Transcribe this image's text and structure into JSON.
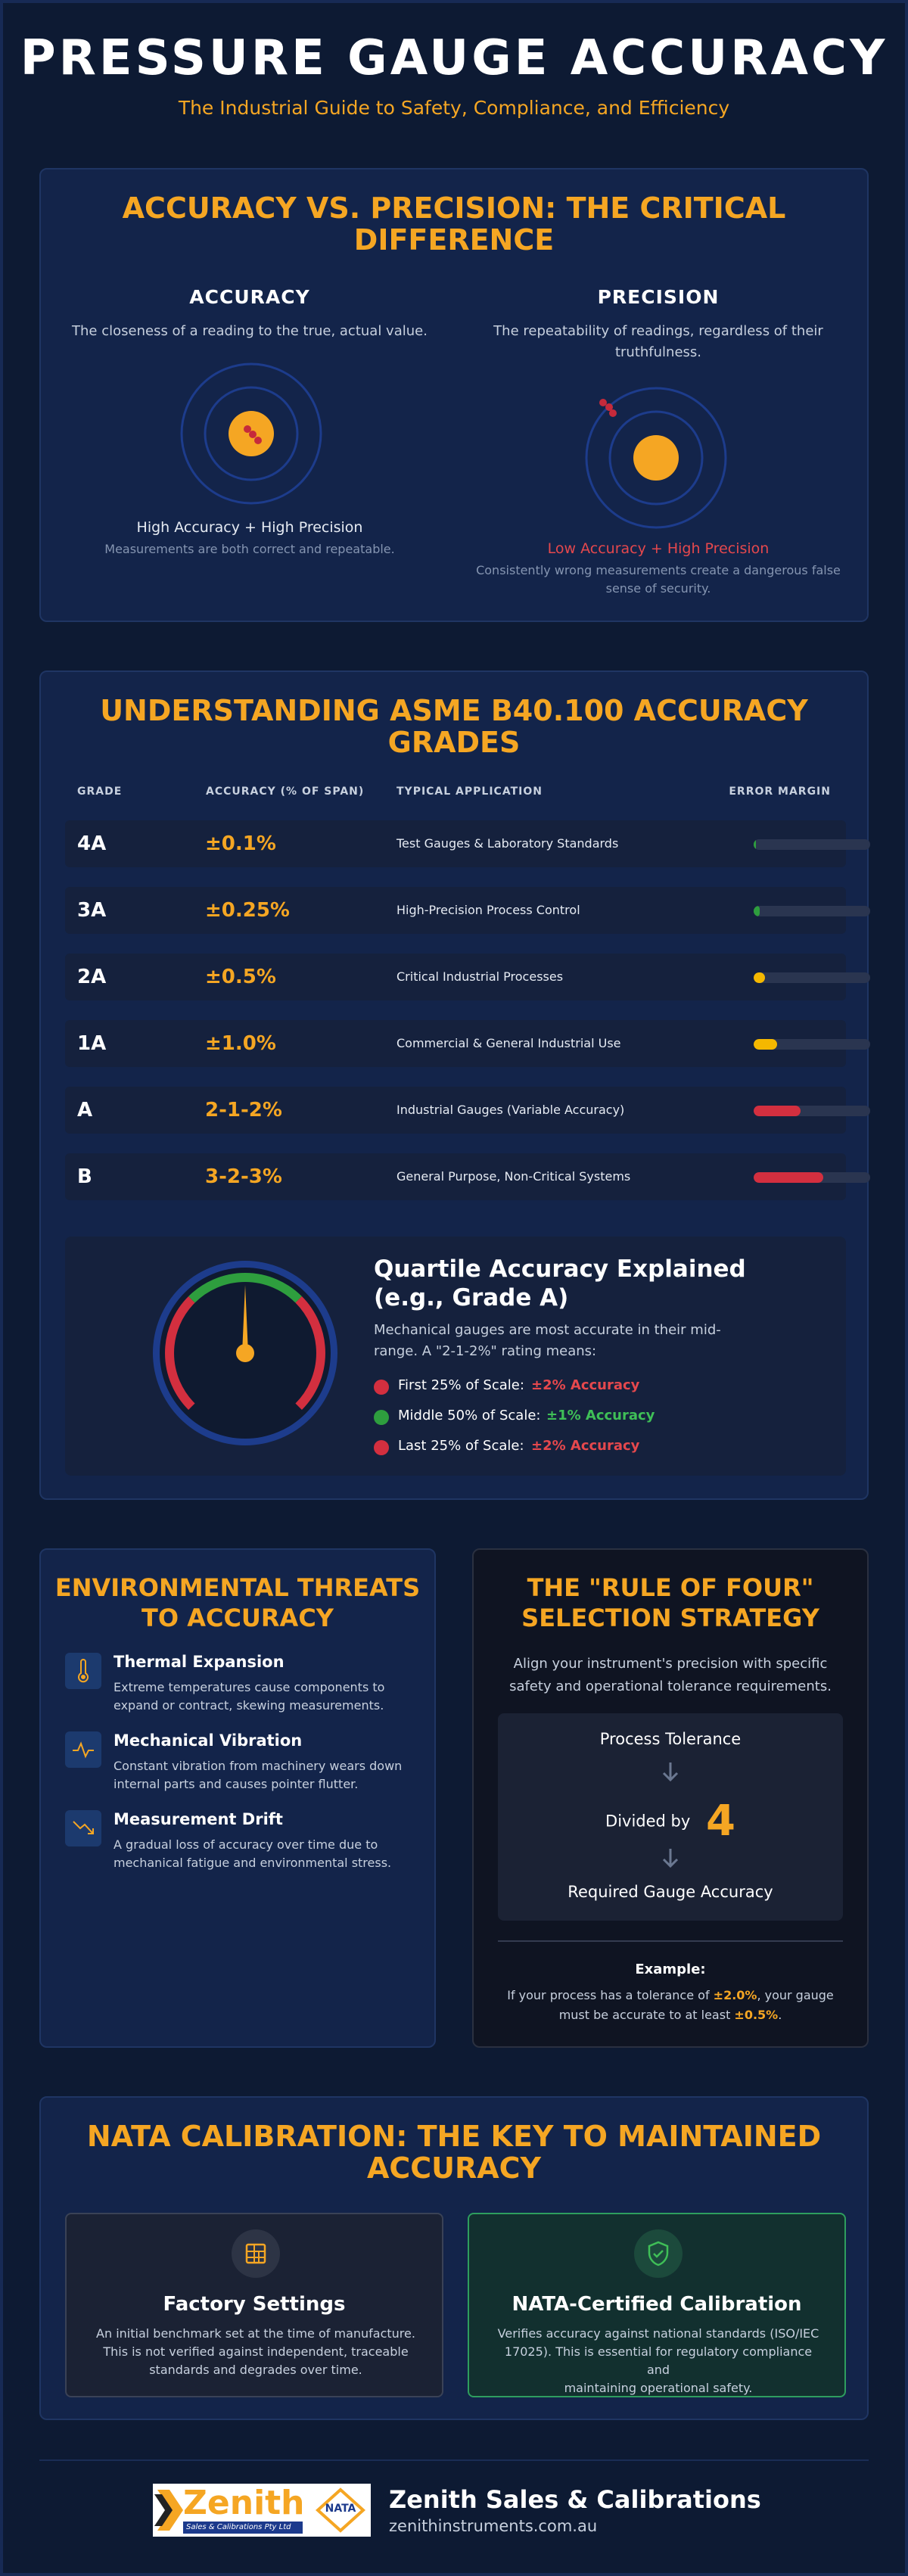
{
  "header": {
    "title": "PRESSURE GAUGE ACCURACY",
    "subtitle": "The Industrial Guide to Safety, Compliance, and Efficiency"
  },
  "accuracy_section": {
    "title_line1": "ACCURACY VS. PRECISION: THE CRITICAL",
    "title_line2": "DIFFERENCE",
    "accuracy": {
      "heading": "ACCURACY",
      "description": "The closeness of a reading to the true, actual value.",
      "caption": "High Accuracy + High Precision",
      "note": "Measurements are both correct and repeatable."
    },
    "precision": {
      "heading": "PRECISION",
      "description_line1": "The repeatability of readings, regardless of their",
      "description_line2": "truthfulness.",
      "caption": "Low Accuracy + High Precision",
      "note_line1": "Consistently wrong measurements create a dangerous false",
      "note_line2": "sense of security."
    }
  },
  "grades_section": {
    "title_line1": "UNDERSTANDING ASME B40.100 ACCURACY",
    "title_line2": "GRADES",
    "headers": {
      "grade": "GRADE",
      "accuracy": "ACCURACY (% OF SPAN)",
      "application": "TYPICAL APPLICATION",
      "error": "ERROR MARGIN"
    },
    "rows": [
      {
        "grade": "4A",
        "accuracy": "±0.1%",
        "application": "Test Gauges & Laboratory Standards",
        "error_fraction": 0.02,
        "color": "#2e9e3e"
      },
      {
        "grade": "3A",
        "accuracy": "±0.25%",
        "application": "High-Precision Process Control",
        "error_fraction": 0.05,
        "color": "#2e9e3e"
      },
      {
        "grade": "2A",
        "accuracy": "±0.5%",
        "application": "Critical Industrial Processes",
        "error_fraction": 0.1,
        "color": "#f5b800"
      },
      {
        "grade": "1A",
        "accuracy": "±1.0%",
        "application": "Commercial & General Industrial Use",
        "error_fraction": 0.2,
        "color": "#f5b800"
      },
      {
        "grade": "A",
        "accuracy": "2-1-2%",
        "application": "Industrial Gauges (Variable Accuracy)",
        "error_fraction": 0.4,
        "color": "#d32f3f"
      },
      {
        "grade": "B",
        "accuracy": "3-2-3%",
        "application": "General Purpose, Non-Critical Systems",
        "error_fraction": 0.6,
        "color": "#d32f3f"
      }
    ],
    "quartile": {
      "title_line1": "Quartile Accuracy Explained",
      "title_line2": "(e.g., Grade A)",
      "desc_line1": "Mechanical gauges are most accurate in their mid-",
      "desc_line2": "range. A \"2-1-2%\" rating means:",
      "items": [
        {
          "label": "First 25% of Scale:",
          "value": "±2% Accuracy",
          "color": "#d32f3f",
          "value_color": "#e5484d"
        },
        {
          "label": "Middle 50% of Scale:",
          "value": "±1% Accuracy",
          "color": "#2e9e3e",
          "value_color": "#3fbf57"
        },
        {
          "label": "Last 25% of Scale:",
          "value": "±2% Accuracy",
          "color": "#d32f3f",
          "value_color": "#e5484d"
        }
      ]
    }
  },
  "threats_section": {
    "title_line1": "ENVIRONMENTAL THREATS",
    "title_line2": "TO ACCURACY",
    "items": [
      {
        "name": "Thermal Expansion",
        "desc_line1": "Extreme temperatures cause components to",
        "desc_line2": "expand or contract, skewing measurements.",
        "icon": "thermometer-icon"
      },
      {
        "name": "Mechanical Vibration",
        "desc_line1": "Constant vibration from machinery wears down",
        "desc_line2": "internal parts and causes pointer flutter.",
        "icon": "pulse-icon"
      },
      {
        "name": "Measurement Drift",
        "desc_line1": "A gradual loss of accuracy over time due to",
        "desc_line2": "mechanical fatigue and environmental stress.",
        "icon": "trending-down-icon"
      }
    ]
  },
  "rule_section": {
    "title_line1": "THE \"RULE OF FOUR\"",
    "title_line2": "SELECTION STRATEGY",
    "desc_line1": "Align your instrument's precision with specific",
    "desc_line2": "safety and operational tolerance requirements.",
    "box": {
      "top": "Process Tolerance",
      "middle": "Divided by",
      "number": "4",
      "bottom": "Required Gauge Accuracy"
    },
    "example_title": "Example:",
    "example_p1": "If your process has a tolerance of ",
    "example_v1": "±2.0%",
    "example_p2": ", your gauge",
    "example_p3": "must be accurate to at least ",
    "example_v2": "±0.5%",
    "example_p4": "."
  },
  "nata_section": {
    "title_line1": "NATA CALIBRATION: THE KEY TO MAINTAINED",
    "title_line2": "ACCURACY",
    "cards": [
      {
        "title": "Factory Settings",
        "desc_line1": "An initial benchmark set at the time of manufacture.",
        "desc_line2": "This is not verified against independent, traceable",
        "desc_line3": "standards and degrades over time.",
        "icon": "factory-icon"
      },
      {
        "title": "NATA-Certified Calibration",
        "desc_line1": "Verifies accuracy against national standards (ISO/IEC",
        "desc_line2": "17025). This is essential for regulatory compliance and",
        "desc_line3": "maintaining operational safety.",
        "icon": "shield-check-icon"
      }
    ]
  },
  "footer": {
    "logo_word": "Zenith",
    "logo_tagline": "Sales & Calibrations Pty Ltd",
    "logo_badge": "NATA",
    "company": "Zenith Sales & Calibrations",
    "url": "zenithinstruments.com.au"
  },
  "colors": {
    "background": "#0d1a33",
    "accent": "#f5a623",
    "good": "#2e9e3e",
    "bad": "#d32f3f"
  }
}
